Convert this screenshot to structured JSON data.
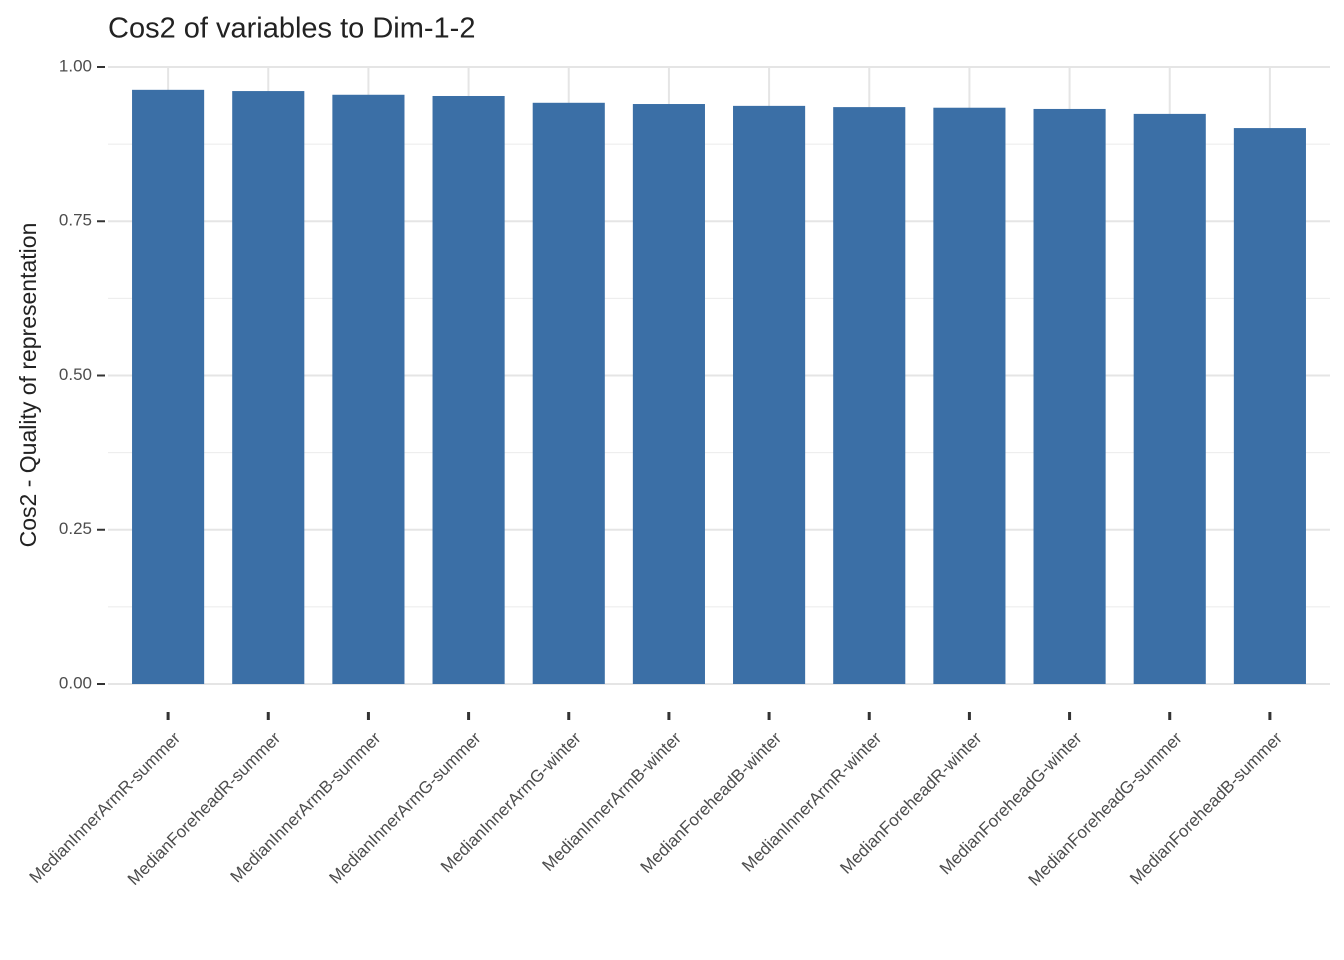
{
  "chart_data": {
    "type": "bar",
    "title": "Cos2 of variables to Dim-1-2",
    "y_label": "Cos2 - Quality of representation",
    "categories": [
      "MedianInnerArmR-summer",
      "MedianForeheadR-summer",
      "MedianInnerArmB-summer",
      "MedianInnerArmG-summer",
      "MedianInnerArmG-winter",
      "MedianInnerArmB-winter",
      "MedianForeheadB-winter",
      "MedianInnerArmR-winter",
      "MedianForeheadR-winter",
      "MedianForeheadG-winter",
      "MedianForeheadG-summer",
      "MedianForeheadB-summer"
    ],
    "values": [
      0.963,
      0.961,
      0.955,
      0.953,
      0.942,
      0.94,
      0.937,
      0.935,
      0.934,
      0.932,
      0.924,
      0.901
    ],
    "color": "#3b6fa6",
    "ylim": [
      0,
      1
    ],
    "yticks": [
      {
        "value": 0,
        "label": "0.00"
      },
      {
        "value": 0.25,
        "label": "0.25"
      },
      {
        "value": 0.5,
        "label": "0.50"
      },
      {
        "value": 0.75,
        "label": "0.75"
      },
      {
        "value": 1,
        "label": "1.00"
      }
    ],
    "grid": true
  }
}
